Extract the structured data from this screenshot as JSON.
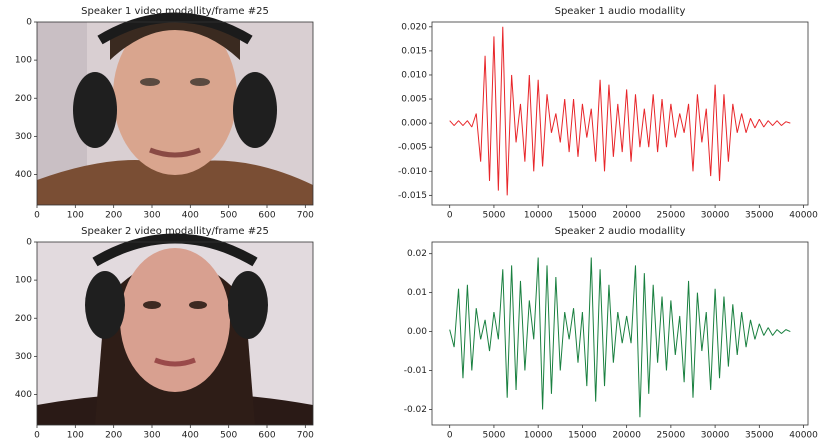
{
  "chart_data": [
    {
      "type": "image",
      "title": "Speaker 1 video modallity/frame #25",
      "xlim": [
        0,
        720
      ],
      "ylim": [
        480,
        0
      ],
      "xticks": [
        0,
        100,
        200,
        300,
        400,
        500,
        600,
        700
      ],
      "yticks": [
        0,
        100,
        200,
        300,
        400
      ]
    },
    {
      "type": "line",
      "title": "Speaker 1 audio modallity",
      "color": "#e8262a",
      "xlim": [
        -2000,
        40500
      ],
      "ylim": [
        -0.017,
        0.021
      ],
      "xticks": [
        0,
        5000,
        10000,
        15000,
        20000,
        25000,
        30000,
        35000,
        40000
      ],
      "yticks": [
        {
          "value": 0.02,
          "label": "0.020"
        },
        {
          "value": 0.015,
          "label": "0.015"
        },
        {
          "value": 0.01,
          "label": "0.010"
        },
        {
          "value": 0.005,
          "label": "0.005"
        },
        {
          "value": 0,
          "label": "0.000"
        },
        {
          "value": -0.005,
          "label": "-0.005"
        },
        {
          "value": -0.01,
          "label": "-0.010"
        },
        {
          "value": -0.015,
          "label": "-0.015"
        }
      ],
      "x": [
        0,
        500,
        1000,
        1500,
        2000,
        2500,
        3000,
        3500,
        4000,
        4500,
        5000,
        5500,
        6000,
        6500,
        7000,
        7500,
        8000,
        8500,
        9000,
        9500,
        10000,
        10500,
        11000,
        11500,
        12000,
        12500,
        13000,
        13500,
        14000,
        14500,
        15000,
        15500,
        16000,
        16500,
        17000,
        17500,
        18000,
        18500,
        19000,
        19500,
        20000,
        20500,
        21000,
        21500,
        22000,
        22500,
        23000,
        23500,
        24000,
        24500,
        25000,
        25500,
        26000,
        26500,
        27000,
        27500,
        28000,
        28500,
        29000,
        29500,
        30000,
        30500,
        31000,
        31500,
        32000,
        32500,
        33000,
        33500,
        34000,
        34500,
        35000,
        35500,
        36000,
        36500,
        37000,
        37500,
        38000,
        38500
      ],
      "values": [
        0.0005,
        -0.0005,
        0.0005,
        -0.0005,
        0.0005,
        -0.0008,
        0.002,
        -0.008,
        0.014,
        -0.012,
        0.018,
        -0.014,
        0.02,
        -0.015,
        0.01,
        -0.004,
        0.004,
        -0.008,
        0.01,
        -0.01,
        0.009,
        -0.009,
        0.006,
        -0.002,
        0.002,
        -0.004,
        0.005,
        -0.006,
        0.005,
        -0.007,
        0.004,
        -0.003,
        0.003,
        -0.008,
        0.009,
        -0.01,
        0.008,
        -0.007,
        0.004,
        -0.006,
        0.007,
        -0.008,
        0.006,
        -0.005,
        0.003,
        -0.005,
        0.006,
        -0.006,
        0.005,
        -0.005,
        0.004,
        -0.003,
        0.002,
        -0.002,
        0.004,
        -0.01,
        0.006,
        -0.004,
        0.003,
        -0.011,
        0.008,
        -0.012,
        0.006,
        -0.008,
        0.004,
        -0.002,
        0.002,
        -0.002,
        0.001,
        -0.001,
        0.0008,
        -0.0008,
        0.0005,
        -0.0005,
        0.0005,
        -0.0005,
        0.0003,
        0
      ]
    },
    {
      "type": "image",
      "title": "Speaker 2 video modallity/frame #25",
      "xlim": [
        0,
        720
      ],
      "ylim": [
        480,
        0
      ],
      "xticks": [
        0,
        100,
        200,
        300,
        400,
        500,
        600,
        700
      ],
      "yticks": [
        0,
        100,
        200,
        300,
        400
      ]
    },
    {
      "type": "line",
      "title": "Speaker 2 audio modallity",
      "color": "#1a8040",
      "xlim": [
        -2000,
        40500
      ],
      "ylim": [
        -0.024,
        0.023
      ],
      "xticks": [
        0,
        5000,
        10000,
        15000,
        20000,
        25000,
        30000,
        35000,
        40000
      ],
      "yticks": [
        0.02,
        0.01,
        {
          "value": 0,
          "label": "0.00"
        },
        -0.01,
        -0.02
      ],
      "x": [
        0,
        500,
        1000,
        1500,
        2000,
        2500,
        3000,
        3500,
        4000,
        4500,
        5000,
        5500,
        6000,
        6500,
        7000,
        7500,
        8000,
        8500,
        9000,
        9500,
        10000,
        10500,
        11000,
        11500,
        12000,
        12500,
        13000,
        13500,
        14000,
        14500,
        15000,
        15500,
        16000,
        16500,
        17000,
        17500,
        18000,
        18500,
        19000,
        19500,
        20000,
        20500,
        21000,
        21500,
        22000,
        22500,
        23000,
        23500,
        24000,
        24500,
        25000,
        25500,
        26000,
        26500,
        27000,
        27500,
        28000,
        28500,
        29000,
        29500,
        30000,
        30500,
        31000,
        31500,
        32000,
        32500,
        33000,
        33500,
        34000,
        34500,
        35000,
        35500,
        36000,
        36500,
        37000,
        37500,
        38000,
        38500
      ],
      "values": [
        0.0005,
        -0.004,
        0.011,
        -0.012,
        0.012,
        -0.01,
        0.006,
        -0.002,
        0.003,
        -0.005,
        0.005,
        -0.002,
        0.016,
        -0.017,
        0.017,
        -0.015,
        0.013,
        -0.01,
        0.008,
        -0.002,
        0.019,
        -0.02,
        0.017,
        -0.016,
        0.014,
        -0.01,
        0.005,
        -0.002,
        0.006,
        -0.008,
        0.005,
        -0.014,
        0.019,
        -0.018,
        0.016,
        -0.014,
        0.012,
        -0.008,
        0.005,
        -0.003,
        0.004,
        -0.003,
        0.017,
        -0.022,
        0.015,
        -0.016,
        0.012,
        -0.008,
        0.009,
        -0.01,
        0.008,
        -0.006,
        0.004,
        -0.013,
        0.013,
        -0.017,
        0.01,
        -0.005,
        0.005,
        -0.015,
        0.011,
        -0.012,
        0.009,
        -0.009,
        0.007,
        -0.006,
        0.005,
        -0.004,
        0.003,
        -0.002,
        0.002,
        -0.001,
        0.001,
        -0.001,
        0.0005,
        -0.0005,
        0.0005,
        0
      ]
    }
  ]
}
